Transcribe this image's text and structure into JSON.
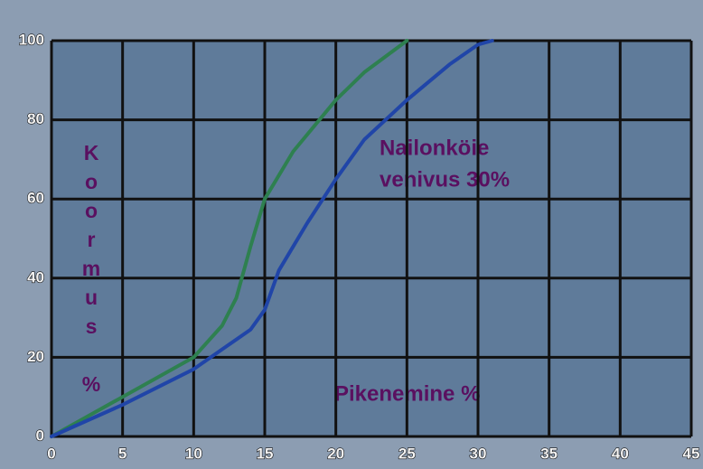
{
  "chart_data": {
    "type": "line",
    "xlabel": "Pikenemine %",
    "ylabel": "Koormus %",
    "annotations": [
      "Nailonköie",
      "venivus 30%"
    ],
    "series": [
      {
        "color": "#2e8050",
        "x": [
          0,
          5,
          10,
          12,
          13,
          14,
          15,
          17,
          20,
          22,
          25
        ],
        "values": [
          0,
          10,
          20,
          28,
          35,
          48,
          60,
          72,
          85,
          92,
          100
        ]
      },
      {
        "color": "#2045a8",
        "x": [
          0,
          5,
          10,
          14,
          15,
          16,
          18,
          20,
          22,
          25,
          28,
          30,
          31
        ],
        "values": [
          0,
          8,
          17,
          27,
          32,
          42,
          54,
          65,
          75,
          85,
          94,
          99,
          100
        ]
      }
    ],
    "xlim": [
      0,
      45
    ],
    "xticks": [
      0,
      5,
      10,
      15,
      20,
      25,
      30,
      35,
      40,
      45
    ],
    "ylim": [
      0,
      100
    ],
    "yticks": [
      0,
      20,
      40,
      60,
      80,
      100
    ],
    "grid": true
  }
}
